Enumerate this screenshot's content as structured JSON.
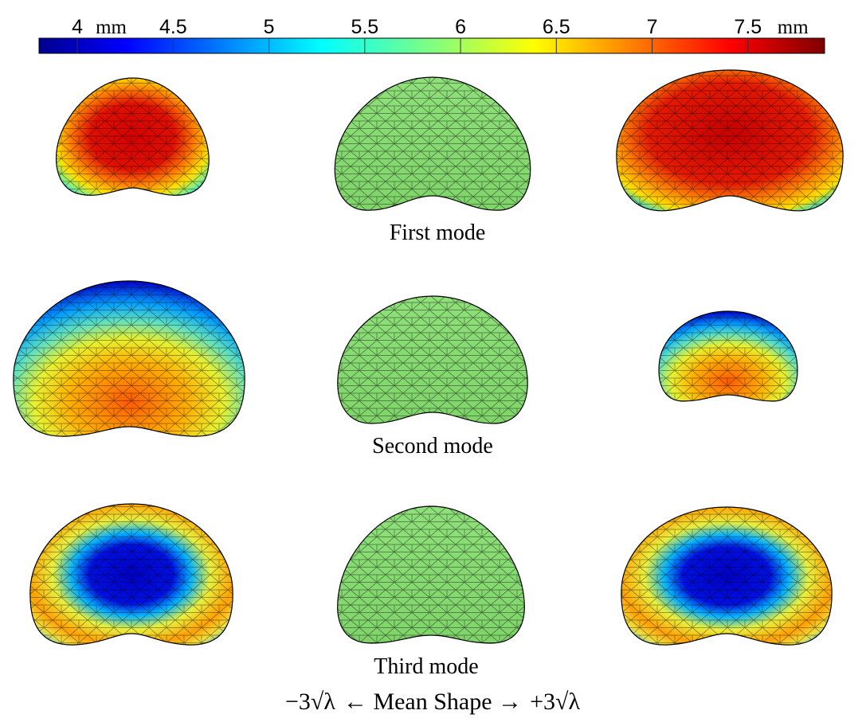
{
  "colorbar": {
    "colormap": "jet",
    "range": [
      3.8,
      7.9
    ],
    "ticks": [
      {
        "value": 4,
        "label": "4",
        "unit": "mm"
      },
      {
        "value": 4.5,
        "label": "4.5",
        "unit": ""
      },
      {
        "value": 5,
        "label": "5",
        "unit": ""
      },
      {
        "value": 5.5,
        "label": "5.5",
        "unit": ""
      },
      {
        "value": 6,
        "label": "6",
        "unit": ""
      },
      {
        "value": 6.5,
        "label": "6.5",
        "unit": ""
      },
      {
        "value": 7,
        "label": "7",
        "unit": ""
      },
      {
        "value": 7.5,
        "label": "7.5",
        "unit": "mm"
      }
    ]
  },
  "modes": [
    {
      "label": "First mode",
      "minus_pattern": "red-center",
      "plus_pattern": "red-center"
    },
    {
      "label": "Second mode",
      "minus_pattern": "blue-top",
      "plus_pattern": "blue-top"
    },
    {
      "label": "Third mode",
      "minus_pattern": "blue-center",
      "plus_pattern": "blue-center"
    }
  ],
  "mean_shape_color": "#8fe07a",
  "caption": {
    "minus": "−3√λ",
    "middle": "← Mean Shape →",
    "plus": "+3√λ"
  }
}
